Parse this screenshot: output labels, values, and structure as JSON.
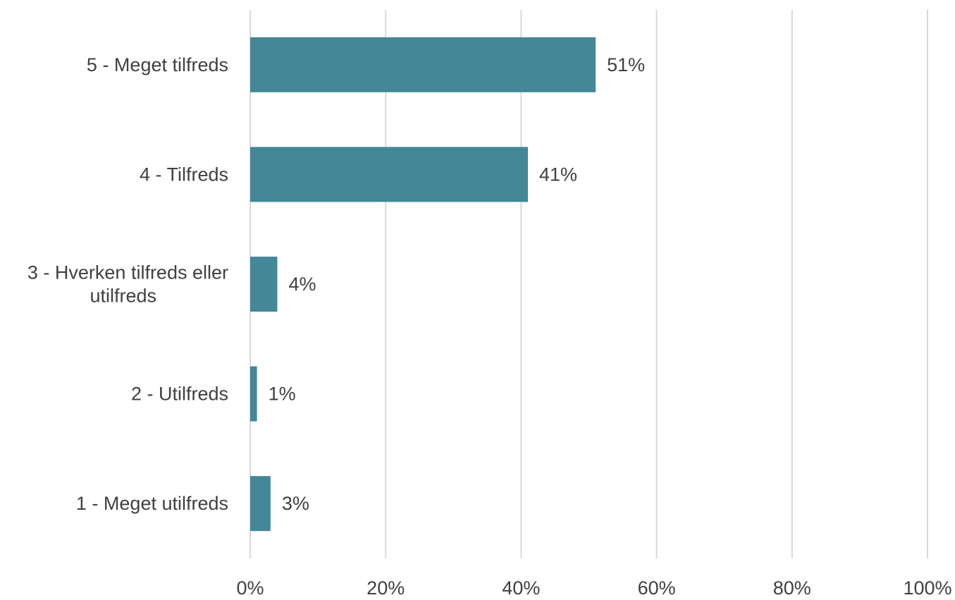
{
  "chart_data": {
    "type": "bar",
    "orientation": "horizontal",
    "categories": [
      [
        "5 - Meget tilfreds"
      ],
      [
        "4 - Tilfreds"
      ],
      [
        "3 - Hverken tilfreds eller",
        "utilfreds"
      ],
      [
        "2 - Utilfreds"
      ],
      [
        "1 - Meget utilfreds"
      ]
    ],
    "values": [
      51,
      41,
      4,
      1,
      3
    ],
    "data_labels": [
      "51%",
      "41%",
      "4%",
      "1%",
      "3%"
    ],
    "x_ticks": [
      0,
      20,
      40,
      60,
      80,
      100
    ],
    "x_tick_labels": [
      "0%",
      "20%",
      "40%",
      "60%",
      "80%",
      "100%"
    ],
    "xlim": [
      0,
      100
    ],
    "grid": true,
    "legend": "none",
    "colors": {
      "bar": "#438798",
      "grid": "#d9d9d9",
      "text": "#404040"
    }
  }
}
